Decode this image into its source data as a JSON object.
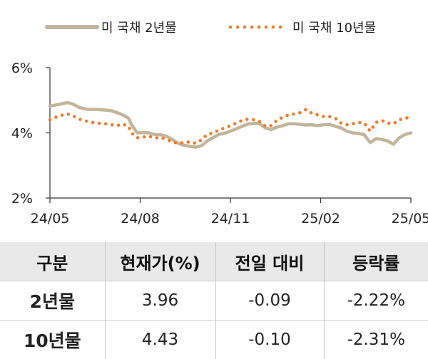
{
  "chart_data": {
    "type": "line",
    "title": "",
    "xlabel": "",
    "ylabel": "",
    "ylim": [
      2,
      6
    ],
    "y_ticks": [
      "6%",
      "4%",
      "2%"
    ],
    "y_tick_values": [
      6,
      4,
      2
    ],
    "x_ticks": [
      "24/05",
      "24/08",
      "24/11",
      "25/02",
      "25/05"
    ],
    "legend_position": "top",
    "grid": false,
    "series": [
      {
        "name": "미 국채 2년물",
        "style": "solid",
        "color": "#c3b59b",
        "points": [
          [
            0,
            4.82
          ],
          [
            3,
            4.87
          ],
          [
            6,
            4.93
          ],
          [
            8,
            4.88
          ],
          [
            10,
            4.78
          ],
          [
            13,
            4.72
          ],
          [
            16,
            4.72
          ],
          [
            19,
            4.7
          ],
          [
            21,
            4.68
          ],
          [
            23,
            4.62
          ],
          [
            25,
            4.55
          ],
          [
            27,
            4.45
          ],
          [
            28,
            4.25
          ],
          [
            30,
            4.0
          ],
          [
            32,
            4.01
          ],
          [
            34,
            4.0
          ],
          [
            36,
            3.95
          ],
          [
            38,
            3.94
          ],
          [
            40,
            3.9
          ],
          [
            42,
            3.8
          ],
          [
            44,
            3.68
          ],
          [
            46,
            3.62
          ],
          [
            48,
            3.59
          ],
          [
            50,
            3.56
          ],
          [
            52,
            3.6
          ],
          [
            54,
            3.75
          ],
          [
            56,
            3.85
          ],
          [
            58,
            3.95
          ],
          [
            60,
            3.99
          ],
          [
            62,
            4.05
          ],
          [
            64,
            4.12
          ],
          [
            66,
            4.2
          ],
          [
            68,
            4.27
          ],
          [
            70,
            4.29
          ],
          [
            72,
            4.28
          ],
          [
            74,
            4.15
          ],
          [
            76,
            4.1
          ],
          [
            78,
            4.18
          ],
          [
            80,
            4.22
          ],
          [
            82,
            4.28
          ],
          [
            84,
            4.28
          ],
          [
            86,
            4.26
          ],
          [
            88,
            4.24
          ],
          [
            90,
            4.25
          ],
          [
            92,
            4.22
          ],
          [
            94,
            4.25
          ],
          [
            96,
            4.26
          ],
          [
            98,
            4.2
          ],
          [
            100,
            4.15
          ],
          [
            102,
            4.05
          ],
          [
            104,
            4.0
          ],
          [
            106,
            3.98
          ],
          [
            108,
            3.94
          ],
          [
            110,
            3.7
          ],
          [
            112,
            3.82
          ],
          [
            114,
            3.8
          ],
          [
            116,
            3.75
          ],
          [
            118,
            3.65
          ],
          [
            120,
            3.85
          ],
          [
            122,
            3.95
          ],
          [
            124,
            4.0
          ]
        ]
      },
      {
        "name": "미 국채 10년물",
        "style": "dotted",
        "color": "#ee7a2a",
        "points": [
          [
            0,
            4.4
          ],
          [
            3,
            4.52
          ],
          [
            6,
            4.58
          ],
          [
            8,
            4.52
          ],
          [
            10,
            4.42
          ],
          [
            13,
            4.35
          ],
          [
            16,
            4.3
          ],
          [
            19,
            4.28
          ],
          [
            21,
            4.25
          ],
          [
            23,
            4.22
          ],
          [
            25,
            4.27
          ],
          [
            27,
            4.2
          ],
          [
            28,
            4.0
          ],
          [
            30,
            3.85
          ],
          [
            32,
            3.87
          ],
          [
            34,
            3.9
          ],
          [
            36,
            3.84
          ],
          [
            38,
            3.86
          ],
          [
            40,
            3.8
          ],
          [
            42,
            3.72
          ],
          [
            44,
            3.68
          ],
          [
            46,
            3.7
          ],
          [
            48,
            3.72
          ],
          [
            50,
            3.68
          ],
          [
            52,
            3.78
          ],
          [
            54,
            3.95
          ],
          [
            56,
            4.0
          ],
          [
            58,
            4.08
          ],
          [
            60,
            4.15
          ],
          [
            62,
            4.22
          ],
          [
            64,
            4.3
          ],
          [
            66,
            4.38
          ],
          [
            68,
            4.42
          ],
          [
            70,
            4.4
          ],
          [
            72,
            4.35
          ],
          [
            74,
            4.2
          ],
          [
            76,
            4.22
          ],
          [
            78,
            4.38
          ],
          [
            80,
            4.48
          ],
          [
            82,
            4.55
          ],
          [
            84,
            4.58
          ],
          [
            86,
            4.62
          ],
          [
            88,
            4.72
          ],
          [
            90,
            4.6
          ],
          [
            92,
            4.55
          ],
          [
            94,
            4.5
          ],
          [
            96,
            4.5
          ],
          [
            98,
            4.45
          ],
          [
            100,
            4.3
          ],
          [
            102,
            4.25
          ],
          [
            104,
            4.28
          ],
          [
            106,
            4.32
          ],
          [
            108,
            4.3
          ],
          [
            110,
            4.05
          ],
          [
            112,
            4.32
          ],
          [
            114,
            4.38
          ],
          [
            116,
            4.3
          ],
          [
            118,
            4.28
          ],
          [
            120,
            4.4
          ],
          [
            122,
            4.45
          ],
          [
            124,
            4.48
          ]
        ]
      }
    ]
  },
  "table": {
    "headers": [
      "구분",
      "현재가(%)",
      "전일 대비",
      "등락률"
    ],
    "rows": [
      {
        "label": "2년물",
        "price": "3.96",
        "change": "-0.09",
        "rate": "-2.22%"
      },
      {
        "label": "10년물",
        "price": "4.43",
        "change": "-0.10",
        "rate": "-2.31%"
      }
    ]
  }
}
